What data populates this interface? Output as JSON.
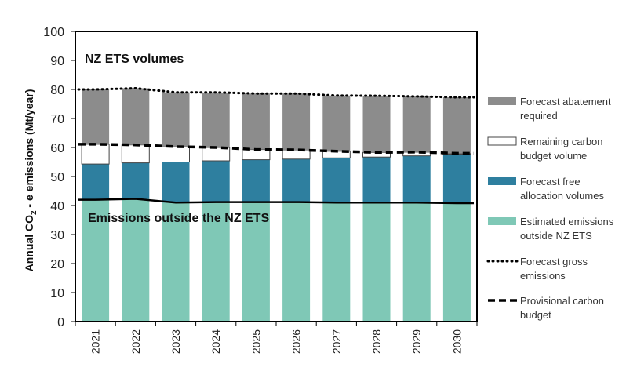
{
  "chart_data": {
    "type": "bar",
    "categories": [
      "2021",
      "2022",
      "2023",
      "2024",
      "2025",
      "2026",
      "2027",
      "2028",
      "2029",
      "2030"
    ],
    "ylabel_main": "Annual CO",
    "ylabel_sub": "2",
    "ylabel_rest": " - e emissions (Mt/year)",
    "ylim": [
      0,
      100
    ],
    "yticks": [
      "0",
      "10",
      "20",
      "30",
      "40",
      "50",
      "60",
      "70",
      "80",
      "90",
      "100"
    ],
    "series": [
      {
        "name": "Estimated emissions outside NZ ETS",
        "color": "#7fc8b6",
        "values": [
          42,
          42.3,
          41,
          41.2,
          41.2,
          41.2,
          41,
          41,
          41,
          40.8
        ]
      },
      {
        "name": "Forecast free allocation volumes",
        "color": "#2e7f9f",
        "values": [
          12.3,
          12.4,
          14,
          14.2,
          14.6,
          14.8,
          15.4,
          15.7,
          16.1,
          16.9
        ]
      },
      {
        "name": "Remaining carbon budget volume",
        "color": "#ffffff",
        "values": [
          6.8,
          6.2,
          5.3,
          4.6,
          3.5,
          3.2,
          2.3,
          1.6,
          1.3,
          0.3
        ]
      },
      {
        "name": "Forecast abatement required",
        "color": "#8c8c8c",
        "values": [
          18.9,
          19.5,
          18.7,
          18.9,
          19.3,
          19.4,
          19.2,
          19.5,
          19.2,
          19.3
        ]
      }
    ],
    "lines": [
      {
        "name": "Forecast gross emissions",
        "style": "dotted",
        "values": [
          80,
          80.4,
          79,
          79,
          78.6,
          78.6,
          77.9,
          77.8,
          77.6,
          77.3
        ]
      },
      {
        "name": "Provisional carbon budget",
        "style": "dashed",
        "values": [
          61.1,
          60.9,
          60.3,
          60,
          59.3,
          59.2,
          58.7,
          58.3,
          58.4,
          58
        ]
      }
    ],
    "annotations": {
      "top": "NZ ETS volumes",
      "middle": "Emissions outside the NZ ETS"
    },
    "legend_position": "right",
    "legend": [
      {
        "label": "Forecast abatement required",
        "kind": "box",
        "color": "#8c8c8c"
      },
      {
        "label": "Remaining carbon budget volume",
        "kind": "box",
        "color": "#ffffff"
      },
      {
        "label": "Forecast free allocation volumes",
        "kind": "box",
        "color": "#2e7f9f"
      },
      {
        "label": "Estimated emissions outside NZ ETS",
        "kind": "box",
        "color": "#7fc8b6"
      },
      {
        "label": "Forecast gross emissions",
        "kind": "dotted"
      },
      {
        "label": "Provisional carbon budget",
        "kind": "dashed"
      }
    ]
  }
}
